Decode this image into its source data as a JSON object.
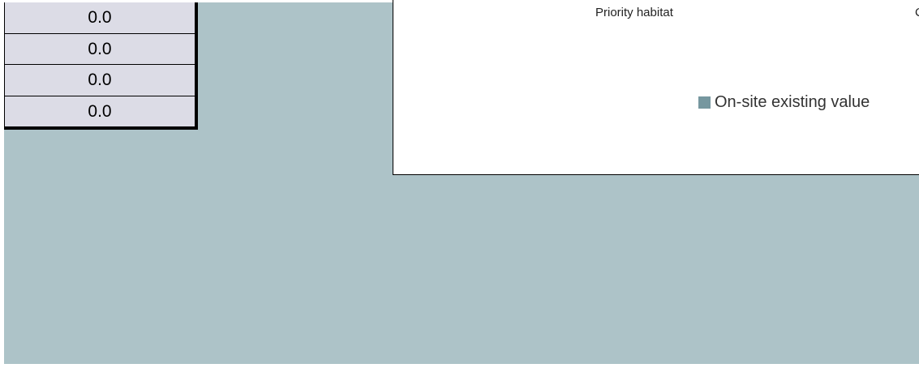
{
  "cells": [
    "0.0",
    "0.0",
    "0.0",
    "0.0"
  ],
  "chart": {
    "category_labels": [
      "Priority habitat",
      "C"
    ],
    "legend": {
      "label": "On-site existing value",
      "color": "#76979f"
    }
  }
}
